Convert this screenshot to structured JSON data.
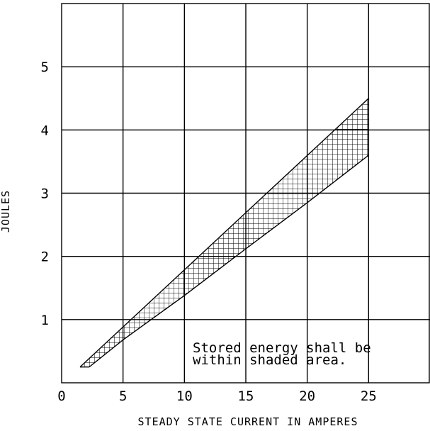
{
  "chart_data": {
    "type": "area",
    "title": "",
    "xlabel": "STEADY STATE CURRENT IN AMPERES",
    "ylabel": "JOULES",
    "xlim": [
      0,
      30
    ],
    "ylim": [
      0,
      6
    ],
    "x_ticks": [
      0,
      5,
      10,
      15,
      20,
      25
    ],
    "y_ticks": [
      1,
      2,
      3,
      4,
      5
    ],
    "grid": true,
    "series": [
      {
        "kind": "upper-bound",
        "x": [
          1.5,
          25
        ],
        "y": [
          0.25,
          4.5
        ]
      },
      {
        "kind": "lower-bound",
        "x": [
          2.25,
          5,
          10,
          15,
          20,
          25
        ],
        "y": [
          0.25,
          0.68,
          1.38,
          2.12,
          2.85,
          3.6
        ]
      }
    ],
    "shading": "crosshatch",
    "color": "#000000",
    "annotation": {
      "lines": [
        "Stored energy shall be",
        "within shaded area."
      ]
    }
  }
}
